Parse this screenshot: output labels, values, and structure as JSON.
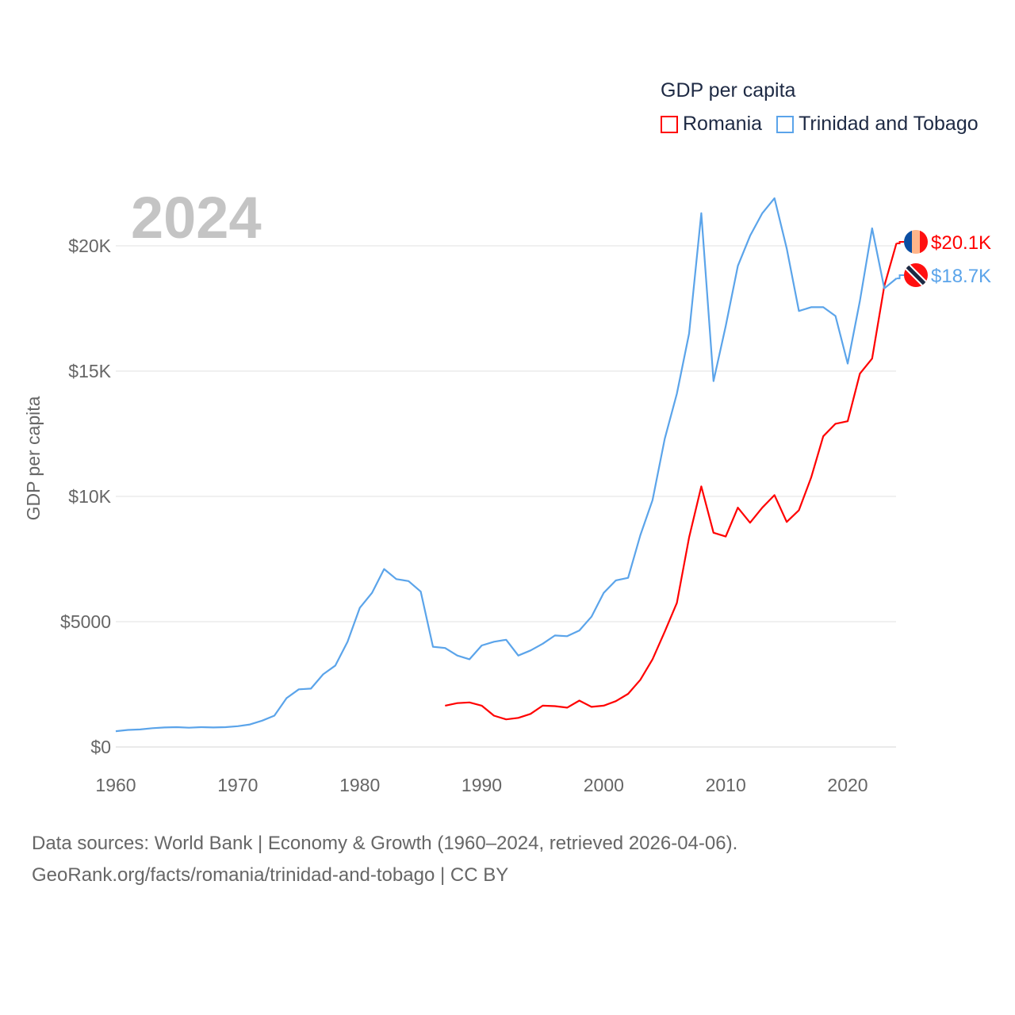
{
  "chart_data": {
    "type": "line",
    "title": "GDP per capita",
    "year_label": "2024",
    "ylabel": "GDP per capita",
    "xlabel": "",
    "xlim": [
      1960,
      2024
    ],
    "ylim": [
      0,
      22500
    ],
    "x_ticks": [
      1960,
      1970,
      1980,
      1990,
      2000,
      2010,
      2020
    ],
    "x_tick_labels": [
      "1960",
      "1970",
      "1980",
      "1990",
      "2000",
      "2010",
      "2020"
    ],
    "y_ticks": [
      0,
      5000,
      10000,
      15000,
      20000
    ],
    "y_tick_labels": [
      "$0",
      "$5000",
      "$10K",
      "$15K",
      "$20K"
    ],
    "grid": true,
    "legend_position": "top-right",
    "series": [
      {
        "name": "Romania",
        "color": "#ff0000",
        "end_label": "$20.1K",
        "flag": "romania-flag",
        "start_year": 1987,
        "values": [
          1650,
          1750,
          1780,
          1650,
          1250,
          1100,
          1160,
          1320,
          1650,
          1630,
          1570,
          1850,
          1600,
          1650,
          1830,
          2120,
          2680,
          3500,
          4600,
          5750,
          8360,
          10400,
          8550,
          8400,
          9550,
          8950,
          9550,
          10050,
          8980,
          9450,
          10750,
          12400,
          12900,
          13000,
          14900,
          15500,
          18400,
          20100
        ]
      },
      {
        "name": "Trinidad and Tobago",
        "color": "#5ba4ea",
        "end_label": "$18.7K",
        "flag": "trinidad-and-tobago-flag",
        "start_year": 1960,
        "values": [
          630,
          680,
          700,
          750,
          780,
          790,
          770,
          790,
          780,
          790,
          830,
          900,
          1050,
          1250,
          1950,
          2300,
          2330,
          2900,
          3250,
          4200,
          5550,
          6150,
          7100,
          6700,
          6620,
          6200,
          4000,
          3950,
          3650,
          3500,
          4050,
          4200,
          4280,
          3650,
          3850,
          4120,
          4450,
          4420,
          4650,
          5200,
          6150,
          6650,
          6750,
          8450,
          9850,
          12300,
          14100,
          16500,
          21300,
          14600,
          16800,
          19200,
          20400,
          21300,
          21900,
          19900,
          17400,
          17550,
          17550,
          17200,
          15300,
          17800,
          20700,
          18300,
          18700
        ]
      }
    ]
  },
  "footer": {
    "line1": "Data sources: World Bank | Economy & Growth (1960–2024, retrieved 2026-04-06).",
    "line2": "GeoRank.org/facts/romania/trinidad-and-tobago | CC BY"
  }
}
